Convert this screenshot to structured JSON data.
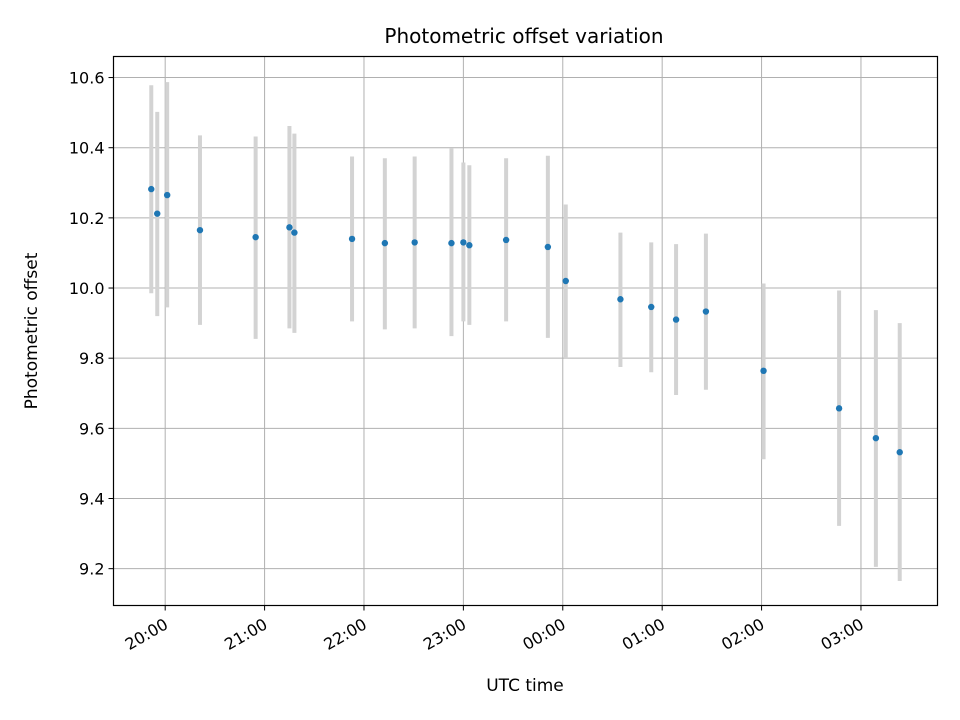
{
  "chart_data": {
    "type": "scatter",
    "title": "Photometric offset variation",
    "xlabel": "UTC time",
    "ylabel": "Photometric offset",
    "x_unit": "hours past 20:00 UTC",
    "xlim": [
      -0.52,
      7.77
    ],
    "ylim": [
      9.095,
      10.66
    ],
    "x_ticks": [
      {
        "value": 0,
        "label": "20:00"
      },
      {
        "value": 1,
        "label": "21:00"
      },
      {
        "value": 2,
        "label": "22:00"
      },
      {
        "value": 3,
        "label": "23:00"
      },
      {
        "value": 4,
        "label": "00:00"
      },
      {
        "value": 5,
        "label": "01:00"
      },
      {
        "value": 6,
        "label": "02:00"
      },
      {
        "value": 7,
        "label": "03:00"
      }
    ],
    "y_ticks": [
      {
        "value": 9.2,
        "label": "9.2"
      },
      {
        "value": 9.4,
        "label": "9.4"
      },
      {
        "value": 9.6,
        "label": "9.6"
      },
      {
        "value": 9.8,
        "label": "9.8"
      },
      {
        "value": 10.0,
        "label": "10.0"
      },
      {
        "value": 10.2,
        "label": "10.2"
      },
      {
        "value": 10.4,
        "label": "10.4"
      },
      {
        "value": 10.6,
        "label": "10.6"
      }
    ],
    "grid": true,
    "point_color": "#1f77b4",
    "errorbar_color": "#d3d3d3",
    "points": [
      {
        "x": -0.14,
        "y": 10.282,
        "ylow": 9.985,
        "yhigh": 10.578
      },
      {
        "x": -0.08,
        "y": 10.212,
        "ylow": 9.92,
        "yhigh": 10.502
      },
      {
        "x": 0.02,
        "y": 10.265,
        "ylow": 9.945,
        "yhigh": 10.587
      },
      {
        "x": 0.35,
        "y": 10.165,
        "ylow": 9.895,
        "yhigh": 10.435
      },
      {
        "x": 0.91,
        "y": 10.145,
        "ylow": 9.855,
        "yhigh": 10.432
      },
      {
        "x": 1.25,
        "y": 10.173,
        "ylow": 9.885,
        "yhigh": 10.462
      },
      {
        "x": 1.3,
        "y": 10.158,
        "ylow": 9.872,
        "yhigh": 10.44
      },
      {
        "x": 1.88,
        "y": 10.14,
        "ylow": 9.905,
        "yhigh": 10.375
      },
      {
        "x": 2.21,
        "y": 10.128,
        "ylow": 9.882,
        "yhigh": 10.37
      },
      {
        "x": 2.51,
        "y": 10.13,
        "ylow": 9.885,
        "yhigh": 10.375
      },
      {
        "x": 2.88,
        "y": 10.128,
        "ylow": 9.863,
        "yhigh": 10.398
      },
      {
        "x": 3.0,
        "y": 10.13,
        "ylow": 9.905,
        "yhigh": 10.358
      },
      {
        "x": 3.06,
        "y": 10.122,
        "ylow": 9.895,
        "yhigh": 10.35
      },
      {
        "x": 3.43,
        "y": 10.137,
        "ylow": 9.905,
        "yhigh": 10.37
      },
      {
        "x": 3.85,
        "y": 10.117,
        "ylow": 9.858,
        "yhigh": 10.377
      },
      {
        "x": 4.03,
        "y": 10.02,
        "ylow": 9.8,
        "yhigh": 10.238
      },
      {
        "x": 4.58,
        "y": 9.968,
        "ylow": 9.775,
        "yhigh": 10.158
      },
      {
        "x": 4.89,
        "y": 9.946,
        "ylow": 9.76,
        "yhigh": 10.13
      },
      {
        "x": 5.14,
        "y": 9.91,
        "ylow": 9.695,
        "yhigh": 10.125
      },
      {
        "x": 5.44,
        "y": 9.933,
        "ylow": 9.71,
        "yhigh": 10.155
      },
      {
        "x": 6.02,
        "y": 9.764,
        "ylow": 9.512,
        "yhigh": 10.013
      },
      {
        "x": 6.78,
        "y": 9.657,
        "ylow": 9.322,
        "yhigh": 9.993
      },
      {
        "x": 7.15,
        "y": 9.572,
        "ylow": 9.205,
        "yhigh": 9.937
      },
      {
        "x": 7.39,
        "y": 9.532,
        "ylow": 9.165,
        "yhigh": 9.9
      }
    ]
  }
}
